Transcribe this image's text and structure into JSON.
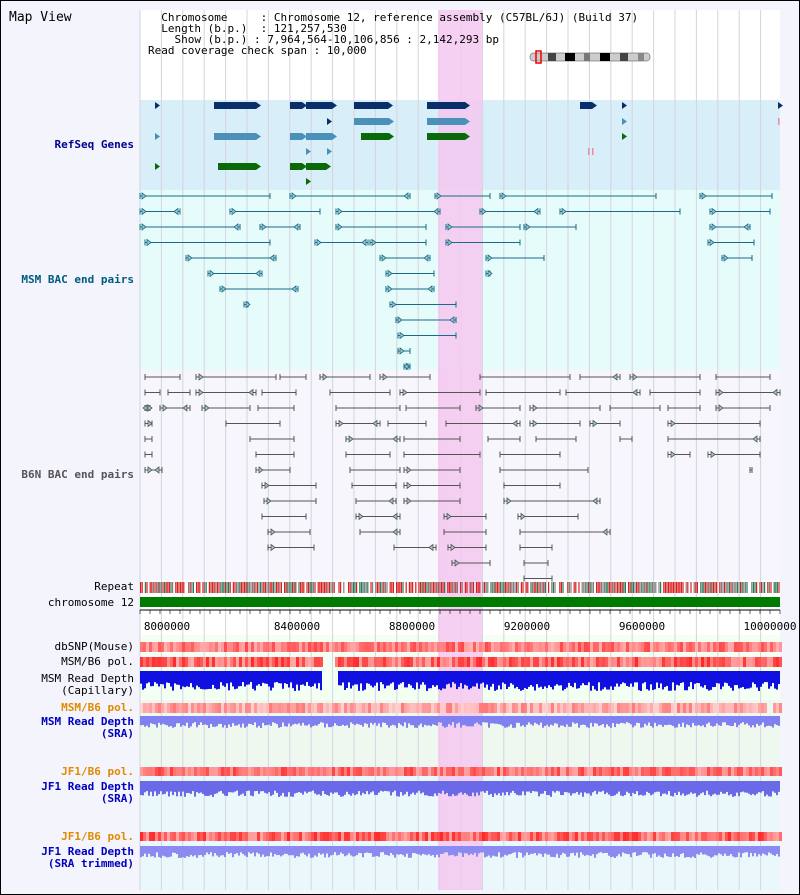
{
  "title": "Map View",
  "header": {
    "chromosome_label": "Chromosome",
    "chromosome_value": "Chromosome 12, reference assembly (C57BL/6J) (Build 37)",
    "length_label": "Length (b.p.)",
    "length_value": "121,257,530",
    "show_label": "Show (b.p.)",
    "show_value": "7,964,564-10,106,856 : 2,142,293 bp",
    "coverage_label": "Read coverage check span",
    "coverage_value": "10,000"
  },
  "tracks": {
    "refseq": "RefSeq Genes",
    "msm_bac": "MSM BAC end pairs",
    "b6n_bac": "B6N BAC end pairs",
    "repeat": "Repeat",
    "chromosome": "chromosome 12",
    "dbsnp": "dbSNP(Mouse)",
    "msm_pol_1": "MSM/B6 pol.",
    "msm_depth_cap_1": "MSM Read Depth",
    "msm_depth_cap_2": "(Capillary)",
    "msm_pol_2": "MSM/B6 pol.",
    "msm_depth_sra_1": "MSM Read Depth",
    "msm_depth_sra_2": "(SRA)",
    "jf1_pol_1": "JF1/B6 pol.",
    "jf1_depth_sra_1": "JF1 Read Depth",
    "jf1_depth_sra_2": "(SRA)",
    "jf1_pol_2": "JF1/B6 pol.",
    "jf1_depth_trim_1": "JF1 Read Depth",
    "jf1_depth_trim_2": "(SRA trimmed)"
  },
  "axis": {
    "ticks": [
      "8000000",
      "8400000",
      "8800000",
      "9200000",
      "9600000",
      "10000000"
    ]
  },
  "colors": {
    "refseq": "#003a80",
    "msm": "#005a80",
    "b6n": "#555555",
    "highlight": "#f5c8f0",
    "chromosome": "#007a00",
    "orange": "#e08a00",
    "blue": "#0000c0"
  }
}
